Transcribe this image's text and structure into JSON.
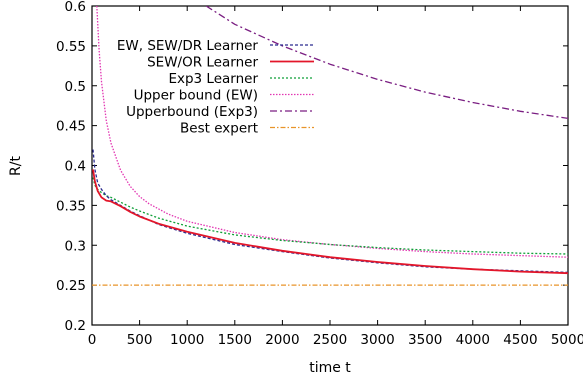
{
  "chart_data": {
    "type": "line",
    "title": "",
    "xlabel": "time t",
    "ylabel": "R/t",
    "xlim": [
      0,
      5000
    ],
    "ylim": [
      0.2,
      0.6
    ],
    "xticks": [
      0,
      500,
      1000,
      1500,
      2000,
      2500,
      3000,
      3500,
      4000,
      4500,
      5000
    ],
    "xtick_labels": [
      "0",
      "500",
      "1000",
      "1500",
      "2000",
      "2500",
      "3000",
      "3500",
      "4000",
      "4500",
      "5000"
    ],
    "yticks": [
      0.2,
      0.25,
      0.3,
      0.35,
      0.4,
      0.45,
      0.5,
      0.55,
      0.6
    ],
    "ytick_labels": [
      "0.2",
      "0.25",
      "0.3",
      "0.35",
      "0.4",
      "0.45",
      "0.5",
      "0.55",
      "0.6"
    ],
    "grid": false,
    "legend_position": "top-right",
    "series": [
      {
        "name": "EW, SEW/DR Learner",
        "color": "#2b2b8f",
        "dash": "3,2",
        "x": [
          10,
          30,
          60,
          100,
          150,
          200,
          300,
          400,
          500,
          700,
          1000,
          1500,
          2000,
          2500,
          3000,
          3500,
          4000,
          4500,
          5000
        ],
        "y": [
          0.42,
          0.395,
          0.378,
          0.37,
          0.362,
          0.357,
          0.35,
          0.343,
          0.337,
          0.326,
          0.315,
          0.301,
          0.292,
          0.284,
          0.278,
          0.273,
          0.27,
          0.268,
          0.266
        ]
      },
      {
        "name": "SEW/OR Learner",
        "color": "#e3162a",
        "dash": "",
        "x": [
          10,
          30,
          60,
          100,
          150,
          200,
          300,
          400,
          500,
          700,
          1000,
          1500,
          2000,
          2500,
          3000,
          3500,
          4000,
          4500,
          5000
        ],
        "y": [
          0.395,
          0.38,
          0.368,
          0.36,
          0.356,
          0.355,
          0.349,
          0.342,
          0.336,
          0.327,
          0.317,
          0.303,
          0.293,
          0.285,
          0.279,
          0.274,
          0.27,
          0.267,
          0.265
        ]
      },
      {
        "name": "Exp3 Learner",
        "color": "#0f9f38",
        "dash": "2,2",
        "x": [
          10,
          30,
          60,
          100,
          150,
          200,
          300,
          400,
          500,
          700,
          1000,
          1500,
          2000,
          2500,
          3000,
          3500,
          4000,
          4500,
          5000
        ],
        "y": [
          0.385,
          0.375,
          0.37,
          0.366,
          0.362,
          0.36,
          0.354,
          0.348,
          0.343,
          0.334,
          0.324,
          0.313,
          0.306,
          0.301,
          0.297,
          0.294,
          0.292,
          0.29,
          0.289
        ]
      },
      {
        "name": "Upper bound (EW)",
        "color": "#e236b2",
        "dash": "1.5,1.5",
        "x": [
          50,
          75,
          100,
          150,
          200,
          300,
          400,
          500,
          600,
          800,
          1000,
          1500,
          2000,
          2500,
          3000,
          3500,
          4000,
          4500,
          5000
        ],
        "y": [
          0.6,
          0.545,
          0.505,
          0.456,
          0.428,
          0.394,
          0.374,
          0.361,
          0.352,
          0.339,
          0.33,
          0.316,
          0.307,
          0.301,
          0.296,
          0.292,
          0.289,
          0.287,
          0.285
        ]
      },
      {
        "name": "Upperbound (Exp3)",
        "color": "#7a1e82",
        "dash": "7,3,2,3",
        "x": [
          1200,
          1500,
          2000,
          2500,
          3000,
          3500,
          4000,
          4500,
          5000
        ],
        "y": [
          0.6,
          0.577,
          0.55,
          0.527,
          0.508,
          0.492,
          0.479,
          0.468,
          0.459
        ]
      },
      {
        "name": "Best expert",
        "color": "#e8942a",
        "dash": "5,2,1.5,2",
        "x": [
          0,
          5000
        ],
        "y": [
          0.25,
          0.25
        ]
      }
    ]
  }
}
